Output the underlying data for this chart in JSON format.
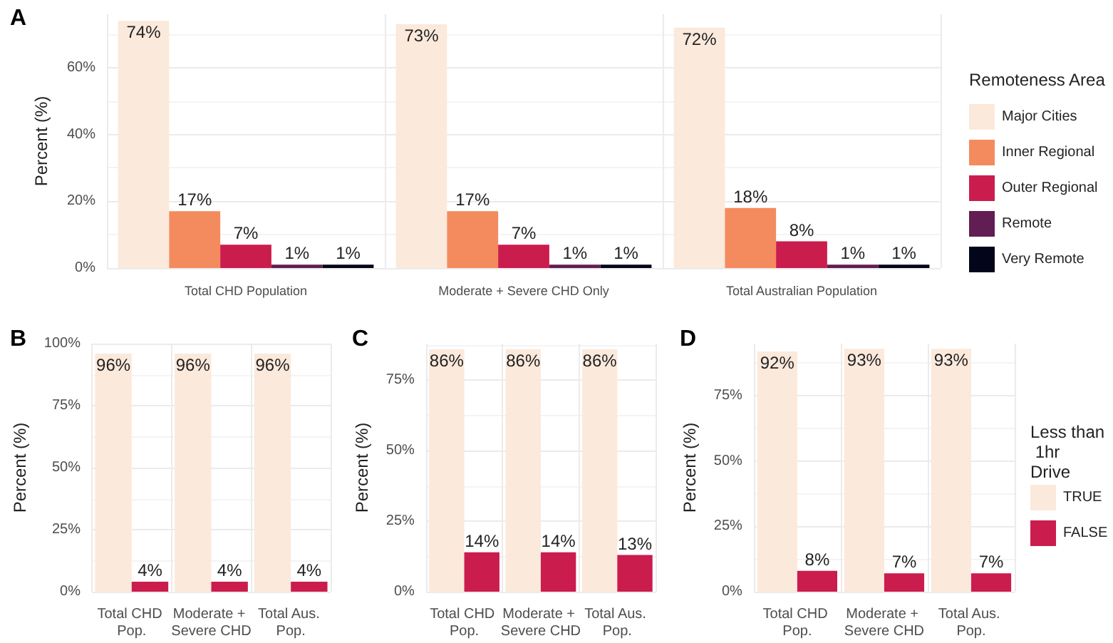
{
  "chart_data": [
    {
      "type": "bar",
      "title": "A",
      "ylabel": "Percent (%)",
      "legend_title": "Remoteness Area",
      "legend": "right",
      "grid": true,
      "categories": [
        "Total CHD Population",
        "Moderate + Severe CHD Only",
        "Total Australian Population"
      ],
      "ylim": [
        0,
        76
      ],
      "yticks": [
        {
          "value": 0,
          "label": "0%"
        },
        {
          "value": 20,
          "label": "20%"
        },
        {
          "value": 40,
          "label": "40%"
        },
        {
          "value": 60,
          "label": "60%"
        }
      ],
      "series": [
        {
          "name": "Major Cities",
          "color": "#fbe9dc",
          "values": [
            74,
            73,
            72
          ],
          "value_labels": [
            "74%",
            "73%",
            "72%"
          ]
        },
        {
          "name": "Inner Regional",
          "color": "#f48b5e",
          "values": [
            17,
            17,
            18
          ],
          "value_labels": [
            "17%",
            "17%",
            "18%"
          ]
        },
        {
          "name": "Outer Regional",
          "color": "#cb1c4e",
          "values": [
            7,
            7,
            8
          ],
          "value_labels": [
            "7%",
            "7%",
            "8%"
          ]
        },
        {
          "name": "Remote",
          "color": "#621d52",
          "values": [
            1,
            1,
            1
          ],
          "value_labels": [
            "1%",
            "1%",
            "1%"
          ]
        },
        {
          "name": "Very Remote",
          "color": "#03051a",
          "values": [
            1,
            1,
            1
          ],
          "value_labels": [
            "1%",
            "1%",
            "1%"
          ]
        }
      ]
    },
    {
      "type": "bar",
      "title": "B",
      "ylabel": "Percent (%)",
      "legend": false,
      "grid": true,
      "categories": [
        "Total CHD Pop.",
        "Moderate + Severe CHD",
        "Total Aus. Pop."
      ],
      "ylim": [
        0,
        100
      ],
      "yticks": [
        {
          "value": 0,
          "label": "0%"
        },
        {
          "value": 25,
          "label": "25%"
        },
        {
          "value": 50,
          "label": "50%"
        },
        {
          "value": 75,
          "label": "75%"
        },
        {
          "value": 100,
          "label": "100%"
        }
      ],
      "series": [
        {
          "color": "#fbe9dc",
          "values": [
            96,
            96,
            96
          ],
          "value_labels": [
            "96%",
            "96%",
            "96%"
          ]
        },
        {
          "color": "#cb1c4e",
          "values": [
            4,
            4,
            4
          ],
          "value_labels": [
            "4%",
            "4%",
            "4%"
          ]
        }
      ]
    },
    {
      "type": "bar",
      "title": "C",
      "ylabel": "Percent (%)",
      "legend": false,
      "grid": true,
      "categories": [
        "Total CHD Pop.",
        "Moderate + Severe CHD",
        "Total Aus. Pop."
      ],
      "ylim": [
        0,
        88
      ],
      "yticks": [
        {
          "value": 0,
          "label": "0%"
        },
        {
          "value": 25,
          "label": "25%"
        },
        {
          "value": 50,
          "label": "50%"
        },
        {
          "value": 75,
          "label": "75%"
        }
      ],
      "series": [
        {
          "color": "#fbe9dc",
          "values": [
            86,
            86,
            86
          ],
          "value_labels": [
            "86%",
            "86%",
            "86%"
          ]
        },
        {
          "color": "#cb1c4e",
          "values": [
            14,
            14,
            13
          ],
          "value_labels": [
            "14%",
            "14%",
            "13%"
          ]
        }
      ]
    },
    {
      "type": "bar",
      "title": "D",
      "ylabel": "Percent (%)",
      "legend_title": "Less than 1hr Drive",
      "legend": "right",
      "grid": true,
      "categories": [
        "Total CHD Pop.",
        "Moderate + Severe CHD",
        "Total Aus. Pop."
      ],
      "ylim": [
        0,
        95
      ],
      "yticks": [
        {
          "value": 0,
          "label": "0%"
        },
        {
          "value": 25,
          "label": "25%"
        },
        {
          "value": 50,
          "label": "50%"
        },
        {
          "value": 75,
          "label": "75%"
        }
      ],
      "series": [
        {
          "name": "TRUE",
          "color": "#fbe9dc",
          "values": [
            92,
            93,
            93
          ],
          "value_labels": [
            "92%",
            "93%",
            "93%"
          ]
        },
        {
          "name": "FALSE",
          "color": "#cb1c4e",
          "values": [
            8,
            7,
            7
          ],
          "value_labels": [
            "8%",
            "7%",
            "7%"
          ]
        }
      ]
    }
  ]
}
